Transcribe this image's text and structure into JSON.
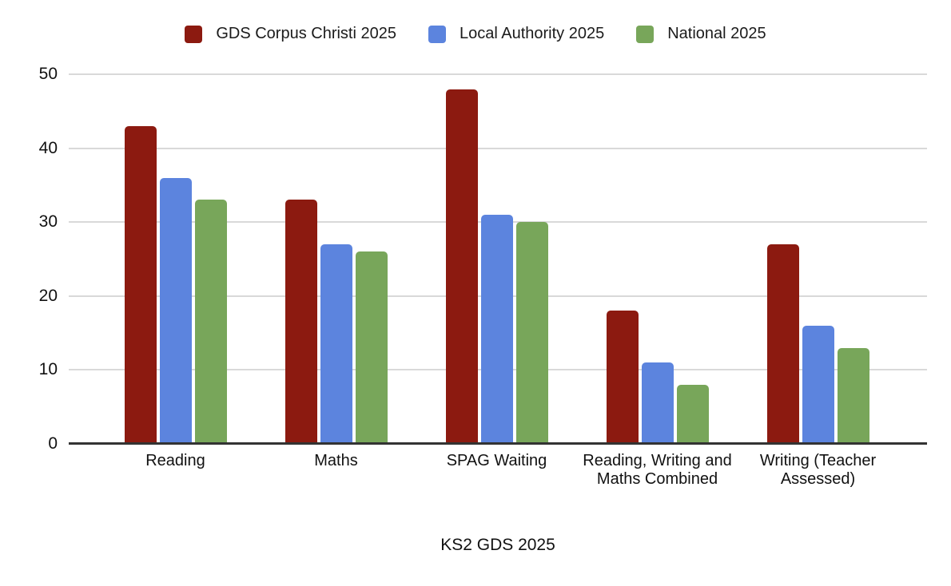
{
  "chart_data": {
    "type": "bar",
    "title": "KS2 GDS 2025",
    "categories": [
      "Reading",
      "Maths",
      "SPAG Waiting",
      "Reading, Writing and Maths Combined",
      "Writing (Teacher Assessed)"
    ],
    "series": [
      {
        "name": "GDS Corpus Christi 2025",
        "color": "#8C1A10",
        "values": [
          43,
          33,
          48,
          18,
          27
        ]
      },
      {
        "name": "Local Authority 2025",
        "color": "#5C84DE",
        "values": [
          36,
          27,
          31,
          11,
          16
        ]
      },
      {
        "name": "National 2025",
        "color": "#78A65A",
        "values": [
          33,
          26,
          30,
          8,
          13
        ]
      }
    ],
    "y_ticks": [
      0,
      10,
      20,
      30,
      40,
      50
    ],
    "ylim": [
      0,
      50
    ],
    "grid": true,
    "legend_position": "top"
  },
  "colors": {
    "background": "#ffffff",
    "gridline": "#d9d9d9",
    "baseline": "#333333",
    "text": "#111111"
  }
}
